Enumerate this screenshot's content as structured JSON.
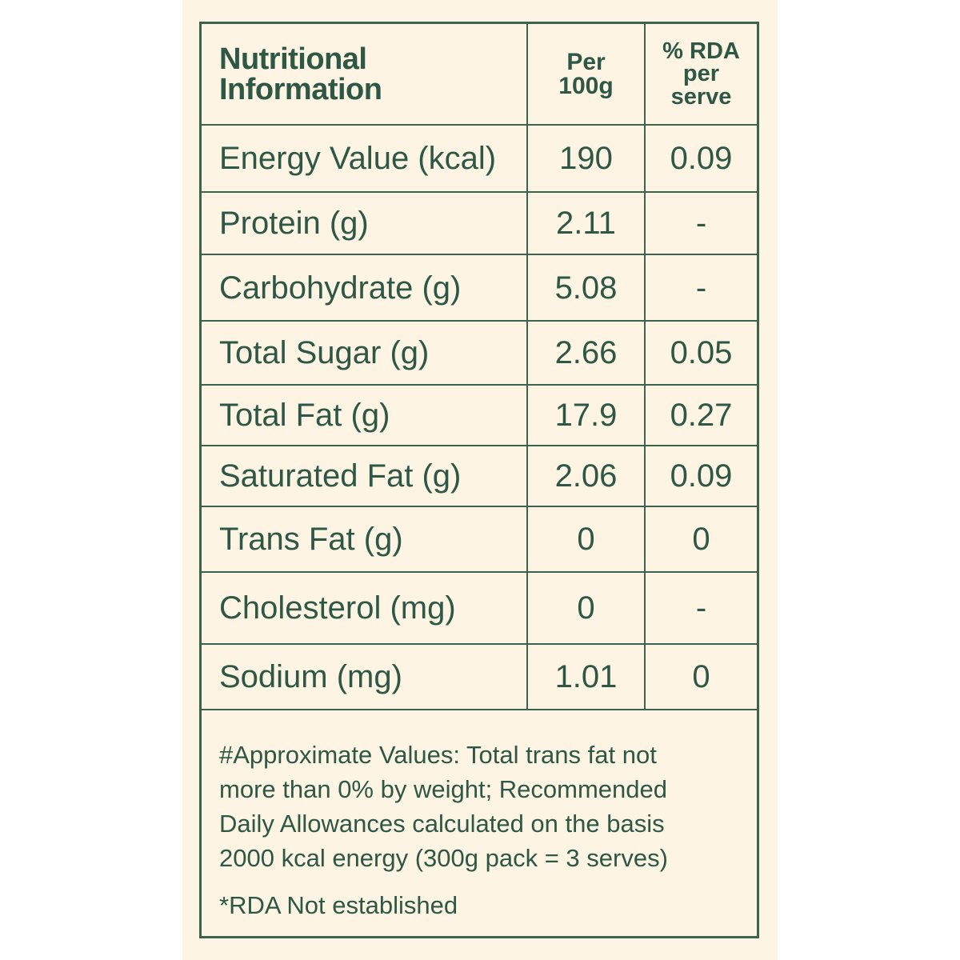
{
  "table": {
    "header": {
      "title_line1": "Nutritional",
      "title_line2": "Information",
      "per_line1": "Per",
      "per_line2": "100g",
      "rda_line1": "% RDA",
      "rda_line2": "per",
      "rda_line3": "serve"
    },
    "rows": [
      {
        "name": "Energy Value (kcal)",
        "per100g": "190",
        "rda": "0.09"
      },
      {
        "name": "Protein (g)",
        "per100g": "2.11",
        "rda": "-"
      },
      {
        "name": "Carbohydrate (g)",
        "per100g": "5.08",
        "rda": "-"
      },
      {
        "name": "Total Sugar (g)",
        "per100g": "2.66",
        "rda": "0.05"
      },
      {
        "name": "Total Fat (g)",
        "per100g": "17.9",
        "rda": "0.27"
      },
      {
        "name": "Saturated Fat (g)",
        "per100g": "2.06",
        "rda": "0.09"
      },
      {
        "name": "Trans Fat (g)",
        "per100g": "0",
        "rda": "0"
      },
      {
        "name": "Cholesterol (mg)",
        "per100g": "0",
        "rda": "-"
      },
      {
        "name": "Sodium (mg)",
        "per100g": "1.01",
        "rda": "0"
      }
    ]
  },
  "notes": {
    "approx_line1": "#Approximate Values: Total trans fat not",
    "approx_line2": "more than 0% by weight; Recommended",
    "approx_line3": "Daily Allowances calculated on the basis",
    "approx_line4": "2000 kcal energy (300g pack = 3 serves)",
    "rda_note": "*RDA Not established"
  },
  "colors": {
    "text": "#2f5746",
    "border": "#3c6250",
    "background": "#fdf4e4"
  }
}
